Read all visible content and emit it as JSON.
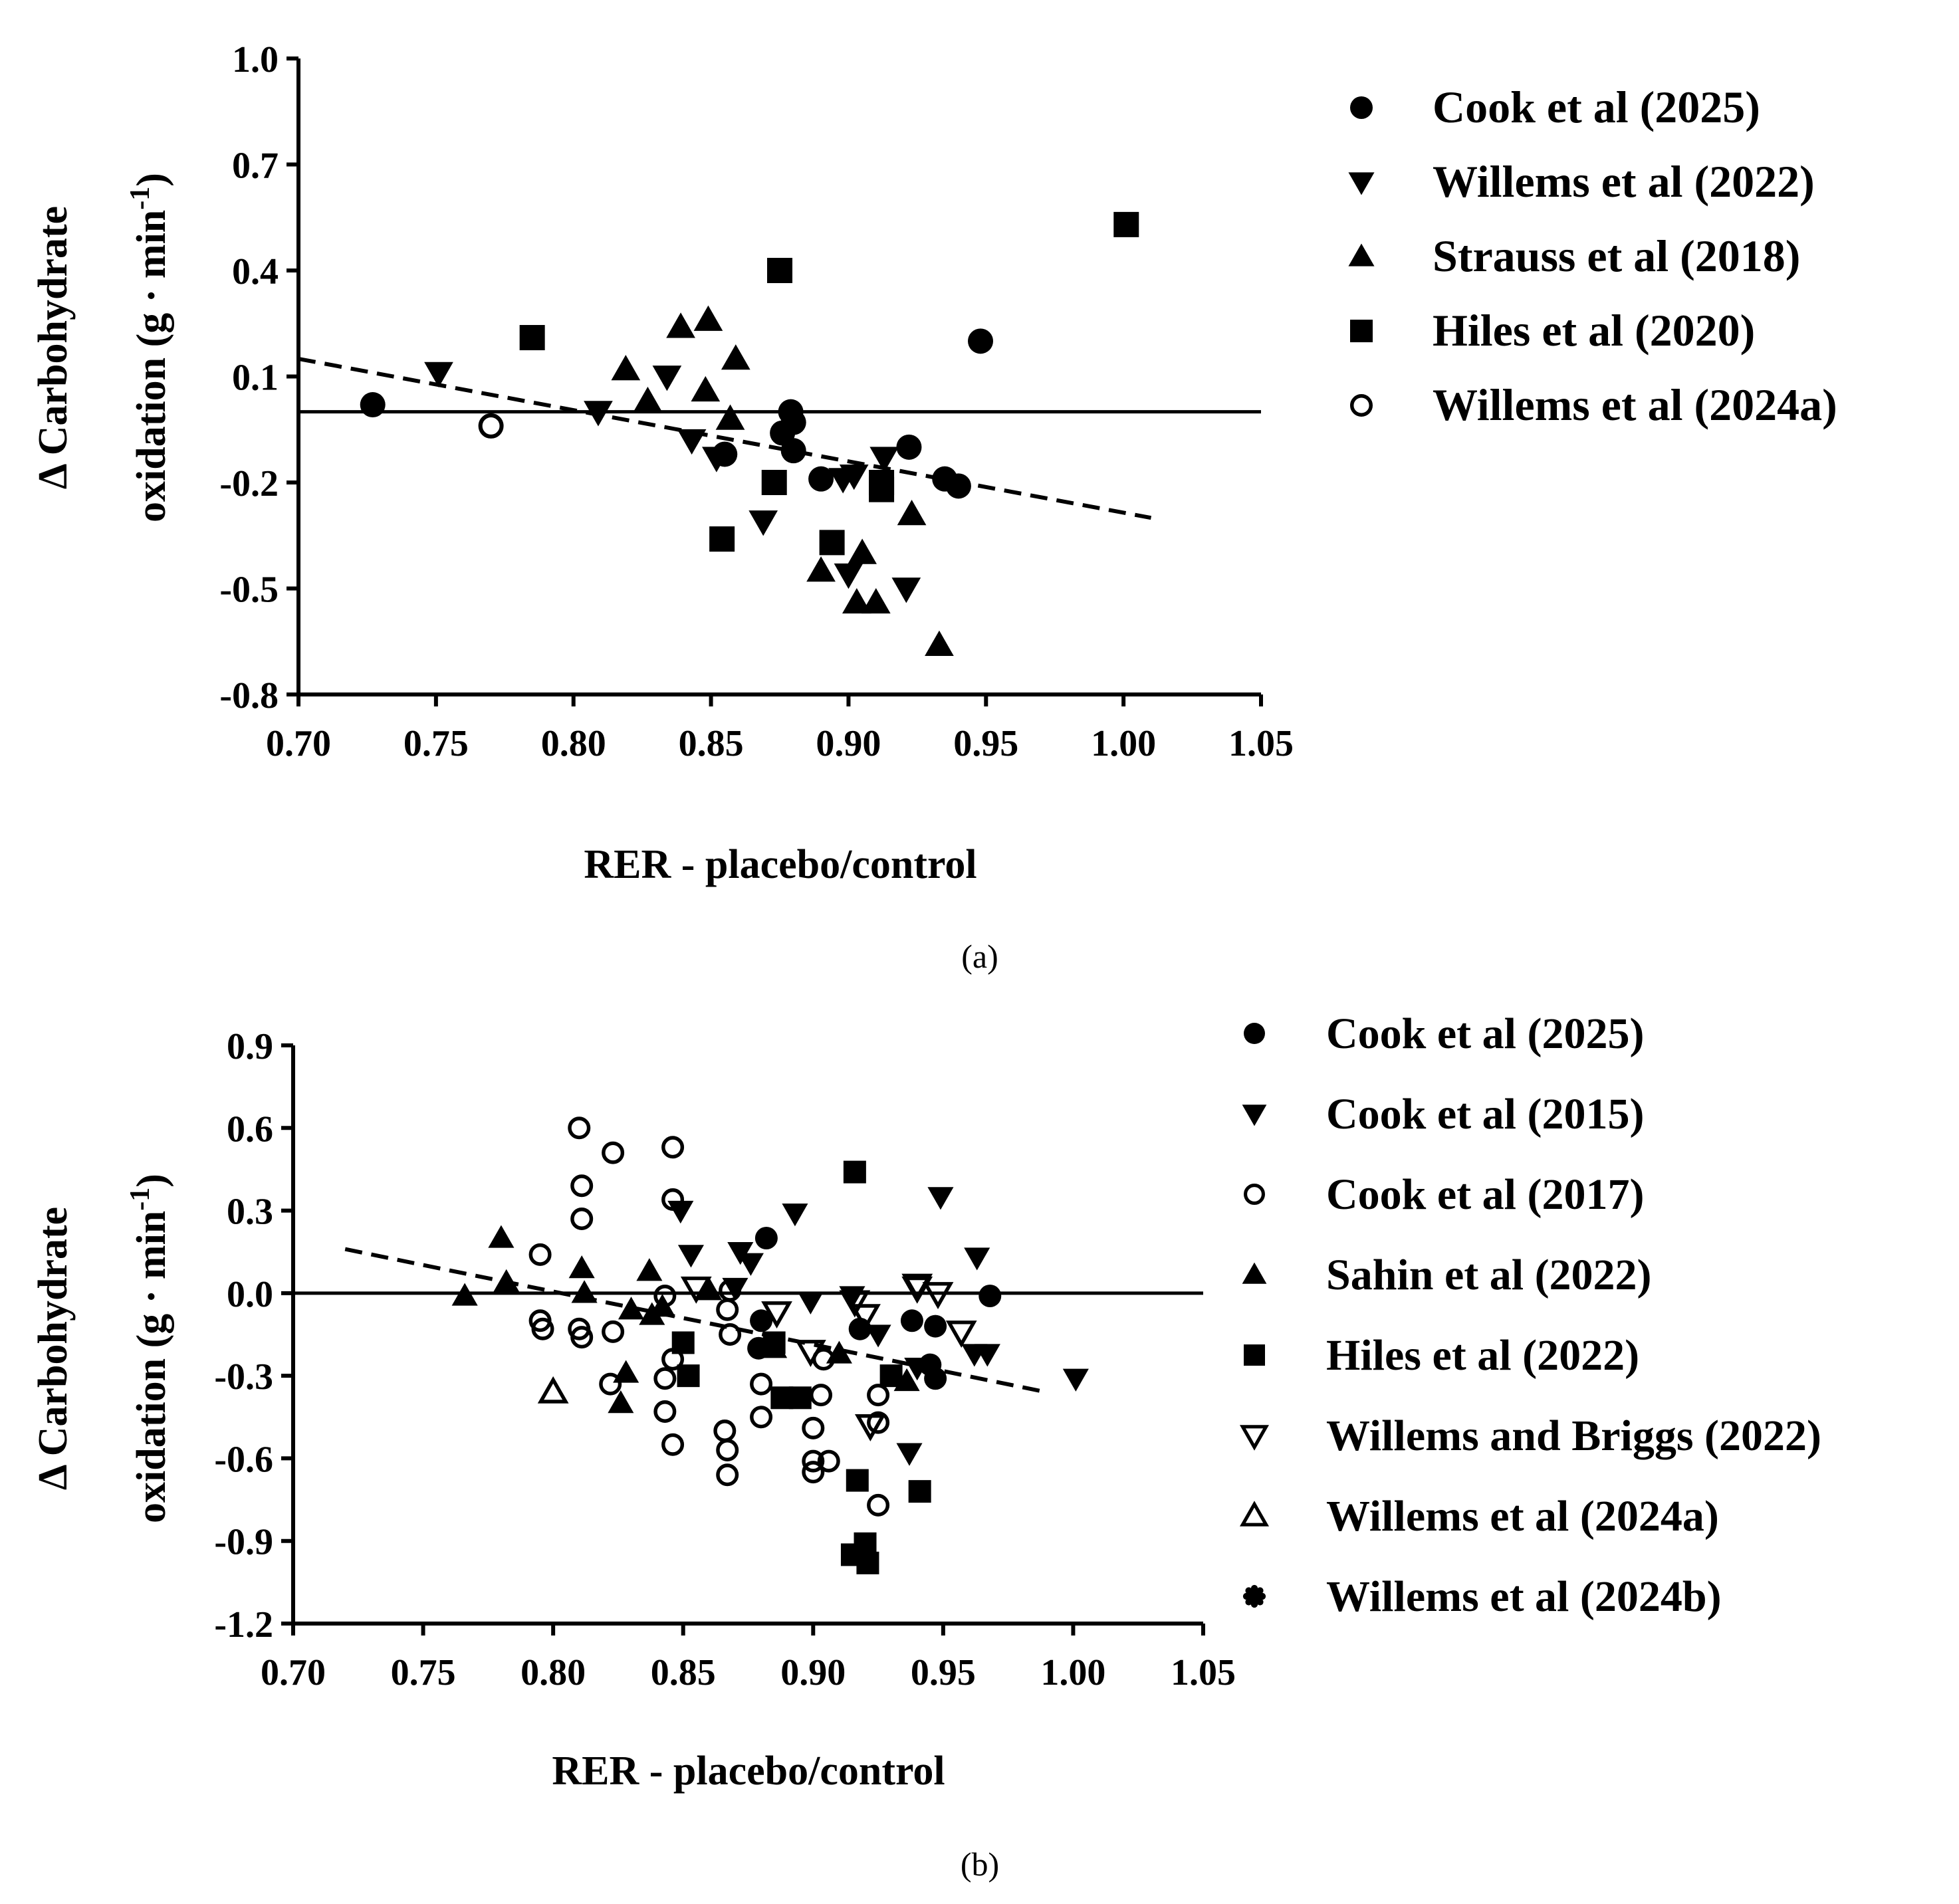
{
  "chart_data": [
    {
      "panel": "(a)",
      "type": "scatter",
      "xlabel": "RER - placebo/control",
      "ylabel_line1": "Δ Carbohydrate",
      "ylabel_line2": "oxidation (g · min",
      "ylabel_sup": "-1",
      "ylabel_close": ")",
      "xlim": [
        0.7,
        1.05
      ],
      "ylim": [
        -0.8,
        1.0
      ],
      "xticks": [
        "0.70",
        "0.75",
        "0.80",
        "0.85",
        "0.90",
        "0.95",
        "1.00",
        "1.05"
      ],
      "yticks": [
        "1.0",
        "0.7",
        "0.4",
        "0.1",
        "-0.2",
        "-0.5",
        "-0.8"
      ],
      "reference_line_y": 0.0,
      "trend": {
        "x": [
          0.7,
          1.01
        ],
        "y": [
          0.15,
          -0.3
        ]
      },
      "series": [
        {
          "name": "Cook et al (2025)",
          "marker": "circle",
          "points": [
            [
              0.727,
              0.02
            ],
            [
              0.855,
              -0.12
            ],
            [
              0.876,
              -0.06
            ],
            [
              0.879,
              0.0
            ],
            [
              0.88,
              -0.03
            ],
            [
              0.88,
              -0.11
            ],
            [
              0.89,
              -0.19
            ],
            [
              0.922,
              -0.1
            ],
            [
              0.935,
              -0.19
            ],
            [
              0.94,
              -0.21
            ],
            [
              0.948,
              0.2
            ]
          ]
        },
        {
          "name": "Willems et al (2022)",
          "marker": "triangle-down",
          "points": [
            [
              0.751,
              0.11
            ],
            [
              0.809,
              0.0
            ],
            [
              0.834,
              0.1
            ],
            [
              0.843,
              -0.08
            ],
            [
              0.852,
              -0.13
            ],
            [
              0.869,
              -0.31
            ],
            [
              0.898,
              -0.19
            ],
            [
              0.9,
              -0.46
            ],
            [
              0.902,
              -0.18
            ],
            [
              0.913,
              -0.13
            ],
            [
              0.921,
              -0.5
            ]
          ]
        },
        {
          "name": "Strauss et al (2018)",
          "marker": "triangle-up",
          "points": [
            [
              0.819,
              0.12
            ],
            [
              0.827,
              0.03
            ],
            [
              0.839,
              0.24
            ],
            [
              0.848,
              0.06
            ],
            [
              0.849,
              0.26
            ],
            [
              0.857,
              -0.02
            ],
            [
              0.859,
              0.15
            ],
            [
              0.89,
              -0.45
            ],
            [
              0.903,
              -0.54
            ],
            [
              0.905,
              -0.4
            ],
            [
              0.91,
              -0.54
            ],
            [
              0.923,
              -0.29
            ],
            [
              0.933,
              -0.66
            ]
          ]
        },
        {
          "name": "Hiles et al  (2020)",
          "marker": "square",
          "points": [
            [
              0.785,
              0.21
            ],
            [
              0.854,
              -0.36
            ],
            [
              0.873,
              -0.2
            ],
            [
              0.875,
              0.4
            ],
            [
              0.894,
              -0.37
            ],
            [
              0.912,
              -0.2
            ],
            [
              0.912,
              -0.22
            ],
            [
              1.001,
              0.53
            ]
          ]
        },
        {
          "name": "Willems et al (2024a)",
          "marker": "circle-open",
          "points": [
            [
              0.77,
              -0.04
            ]
          ]
        }
      ]
    },
    {
      "panel": "(b)",
      "type": "scatter",
      "xlabel": "RER - placebo/control",
      "ylabel_line1": "Δ Carbohydrate",
      "ylabel_line2": "oxidation (g · min",
      "ylabel_sup": "-1",
      "ylabel_close": ")",
      "xlim": [
        0.7,
        1.05
      ],
      "ylim": [
        -1.2,
        0.9
      ],
      "xticks": [
        "0.70",
        "0.75",
        "0.80",
        "0.85",
        "0.90",
        "0.95",
        "1.00",
        "1.05"
      ],
      "yticks": [
        "0.9",
        "0.6",
        "0.3",
        "0.0",
        "-0.3",
        "-0.6",
        "-0.9",
        "-1.2"
      ],
      "reference_line_y": 0.0,
      "trend": {
        "x": [
          0.72,
          0.99
        ],
        "y": [
          0.16,
          -0.36
        ]
      },
      "series": [
        {
          "name": "Cook et al (2025)",
          "marker": "circle",
          "points": [
            [
              0.879,
              -0.2
            ],
            [
              0.882,
              0.2
            ],
            [
              0.88,
              -0.1
            ],
            [
              0.938,
              -0.1
            ],
            [
              0.947,
              -0.12
            ],
            [
              0.947,
              -0.31
            ],
            [
              0.945,
              -0.26
            ],
            [
              0.968,
              -0.01
            ],
            [
              0.918,
              -0.13
            ]
          ]
        },
        {
          "name": "Cook et al (2015)",
          "marker": "triangle-down",
          "points": [
            [
              0.849,
              0.3
            ],
            [
              0.853,
              0.14
            ],
            [
              0.87,
              0.02
            ],
            [
              0.872,
              0.15
            ],
            [
              0.876,
              0.11
            ],
            [
              0.893,
              0.29
            ],
            [
              0.899,
              -0.03
            ],
            [
              0.915,
              -0.01
            ],
            [
              0.925,
              -0.15
            ],
            [
              0.937,
              -0.58
            ],
            [
              0.949,
              0.35
            ],
            [
              0.963,
              0.13
            ],
            [
              1.001,
              -0.31
            ],
            [
              0.967,
              -0.22
            ],
            [
              0.962,
              -0.22
            ],
            [
              0.94,
              -0.27
            ]
          ]
        },
        {
          "name": "Cook et al (2017)",
          "marker": "circle-open",
          "points": [
            [
              0.795,
              0.14
            ],
            [
              0.795,
              -0.1
            ],
            [
              0.796,
              -0.13
            ],
            [
              0.81,
              0.6
            ],
            [
              0.811,
              0.39
            ],
            [
              0.811,
              0.27
            ],
            [
              0.81,
              -0.13
            ],
            [
              0.811,
              -0.16
            ],
            [
              0.823,
              0.51
            ],
            [
              0.823,
              -0.14
            ],
            [
              0.822,
              -0.33
            ],
            [
              0.843,
              -0.01
            ],
            [
              0.843,
              -0.31
            ],
            [
              0.843,
              -0.43
            ],
            [
              0.846,
              0.53
            ],
            [
              0.846,
              0.34
            ],
            [
              0.846,
              -0.24
            ],
            [
              0.846,
              -0.55
            ],
            [
              0.866,
              -0.5
            ],
            [
              0.867,
              -0.66
            ],
            [
              0.867,
              -0.57
            ],
            [
              0.868,
              -0.15
            ],
            [
              0.868,
              0.01
            ],
            [
              0.867,
              -0.06
            ],
            [
              0.88,
              -0.33
            ],
            [
              0.88,
              -0.45
            ],
            [
              0.9,
              -0.49
            ],
            [
              0.9,
              -0.61
            ],
            [
              0.9,
              -0.65
            ],
            [
              0.904,
              -0.24
            ],
            [
              0.903,
              -0.37
            ],
            [
              0.906,
              -0.61
            ],
            [
              0.925,
              -0.37
            ],
            [
              0.925,
              -0.47
            ],
            [
              0.925,
              -0.77
            ]
          ]
        },
        {
          "name": "Sahin et al (2022)",
          "marker": "triangle-up",
          "points": [
            [
              0.766,
              -0.01
            ],
            [
              0.78,
              0.2
            ],
            [
              0.782,
              0.04
            ],
            [
              0.811,
              0.09
            ],
            [
              0.812,
              0.0
            ],
            [
              0.826,
              -0.4
            ],
            [
              0.828,
              -0.29
            ],
            [
              0.83,
              -0.06
            ],
            [
              0.837,
              0.08
            ],
            [
              0.838,
              -0.08
            ],
            [
              0.842,
              -0.05
            ],
            [
              0.86,
              0.01
            ],
            [
              0.885,
              -0.2
            ],
            [
              0.91,
              -0.22
            ],
            [
              0.936,
              -0.32
            ]
          ]
        },
        {
          "name": "Hiles et al (2022)",
          "marker": "square",
          "points": [
            [
              0.852,
              -0.3
            ],
            [
              0.85,
              -0.18
            ],
            [
              0.885,
              -0.18
            ],
            [
              0.888,
              -0.38
            ],
            [
              0.895,
              -0.38
            ],
            [
              0.915,
              -0.95
            ],
            [
              0.917,
              -0.68
            ],
            [
              0.916,
              0.44
            ],
            [
              0.92,
              -0.91
            ],
            [
              0.921,
              -0.98
            ],
            [
              0.941,
              -0.72
            ],
            [
              0.93,
              -0.3
            ]
          ]
        },
        {
          "name": "Willems and Briggs (2022)",
          "marker": "triangle-down-open",
          "points": [
            [
              0.855,
              0.02
            ],
            [
              0.886,
              -0.07
            ],
            [
              0.899,
              -0.21
            ],
            [
              0.916,
              -0.03
            ],
            [
              0.92,
              -0.08
            ],
            [
              0.94,
              0.02
            ],
            [
              0.948,
              0.0
            ],
            [
              0.957,
              -0.14
            ],
            [
              0.94,
              0.03
            ],
            [
              0.922,
              -0.48
            ]
          ]
        },
        {
          "name": "Willems et al (2024a)",
          "marker": "triangle-up-open",
          "points": [
            [
              0.8,
              -0.36
            ]
          ]
        },
        {
          "name": "Willems et al (2024b)",
          "marker": "star",
          "points": []
        }
      ]
    }
  ]
}
